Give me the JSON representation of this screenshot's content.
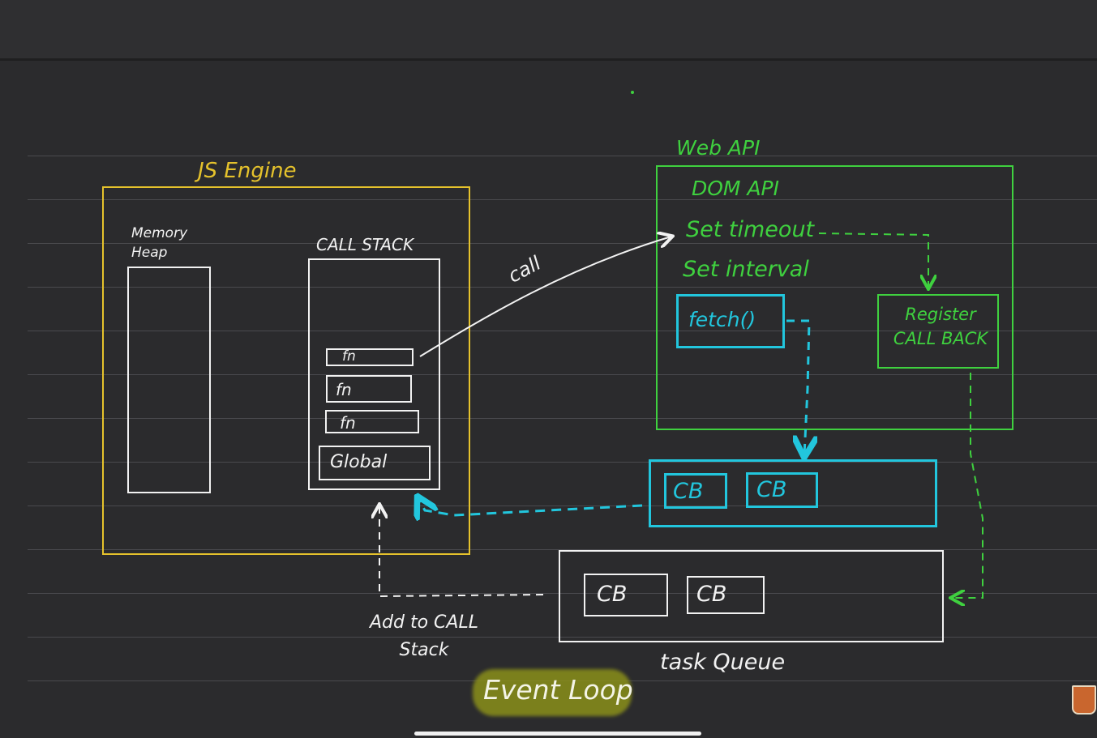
{
  "diagram": {
    "js_engine": {
      "title": "JS Engine",
      "memory_heap_label": "Memory Heap",
      "call_stack": {
        "label": "CALL STACK",
        "frames": [
          "fn",
          "fn",
          "fn"
        ],
        "global_label": "Global"
      }
    },
    "call_arrow_label": "call",
    "web_api": {
      "title": "Web API",
      "items": [
        "DOM API",
        "Set timeout",
        "Set interval"
      ],
      "fetch_label": "fetch()",
      "register_callback": "Register CALL BACK"
    },
    "microtask_queue": {
      "items": [
        "CB",
        "CB"
      ]
    },
    "task_queue": {
      "label": "task Queue",
      "items": [
        "CB",
        "CB"
      ]
    },
    "add_to_call_stack_label": "Add to CALL Stack",
    "event_loop_label": "Event Loop"
  }
}
